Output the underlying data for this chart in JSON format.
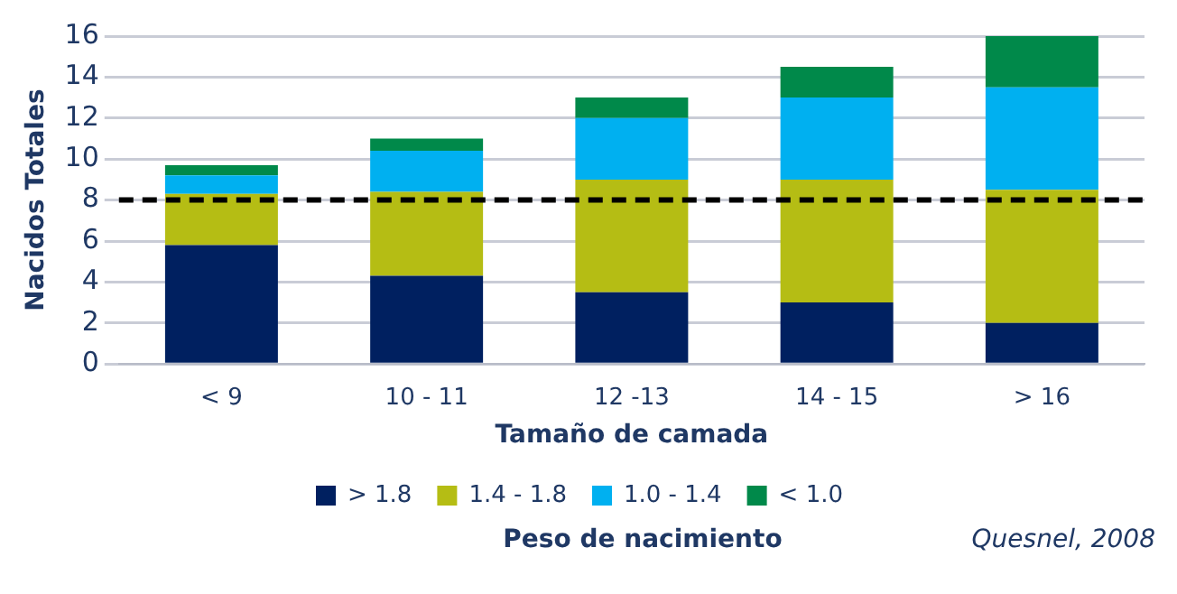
{
  "chart_data": {
    "type": "bar",
    "stacked": true,
    "xlabel": "Tamaño de camada",
    "ylabel": "Nacidos Totales",
    "legend_title": "Peso de nacimiento",
    "categories": [
      "< 9",
      "10 - 11",
      "12 -13",
      "14 - 15",
      "> 16"
    ],
    "series": [
      {
        "name": "> 1.8",
        "color": "#002060",
        "values": [
          5.8,
          4.3,
          3.5,
          3.0,
          2.0
        ]
      },
      {
        "name": "1.4 - 1.8",
        "color": "#b5bd14",
        "values": [
          2.5,
          4.1,
          5.5,
          6.0,
          6.5
        ]
      },
      {
        "name": "1.0 - 1.4",
        "color": "#00b0f0",
        "values": [
          0.9,
          2.0,
          3.0,
          4.0,
          5.0
        ]
      },
      {
        "name": "< 1.0",
        "color": "#00894a",
        "values": [
          0.5,
          0.6,
          1.0,
          1.5,
          2.5
        ]
      }
    ],
    "ylim": [
      0,
      16
    ],
    "yticks": [
      0,
      2,
      4,
      6,
      8,
      10,
      12,
      14,
      16
    ],
    "grid": "y",
    "legend": "bottom",
    "ref_lines": [
      {
        "axis": "y",
        "value": 8,
        "color": "#000000",
        "line_style": "dashed"
      }
    ],
    "annotations": [
      "Quesnel, 2008"
    ]
  }
}
